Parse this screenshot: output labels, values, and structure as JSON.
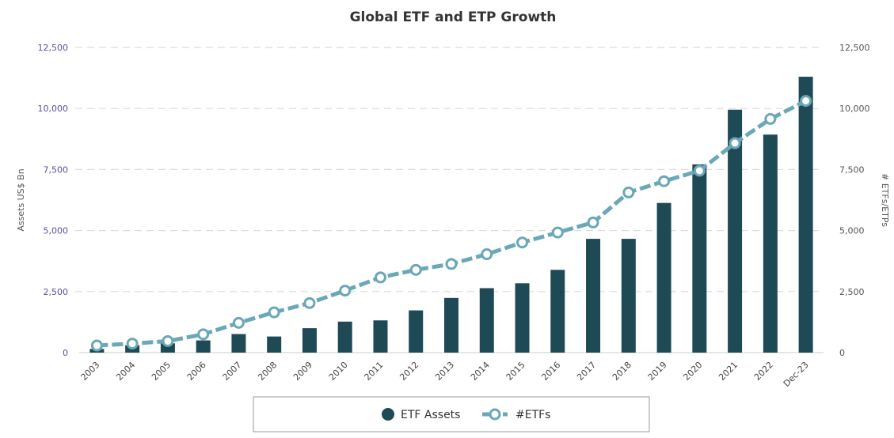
{
  "chart_data": {
    "type": "bar",
    "title": "Global ETF and ETP Growth",
    "categories": [
      "2003",
      "2004",
      "2005",
      "2006",
      "2007",
      "2008",
      "2009",
      "2010",
      "2011",
      "2012",
      "2013",
      "2014",
      "2015",
      "2016",
      "2017",
      "2018",
      "2019",
      "2020",
      "2021",
      "2022",
      "Dec-23"
    ],
    "series": [
      {
        "name": "ETF Assets",
        "kind": "bar",
        "axis": "left",
        "color": "#1e4a56",
        "values": [
          150,
          300,
          380,
          500,
          760,
          660,
          1000,
          1270,
          1320,
          1730,
          2240,
          2640,
          2840,
          3390,
          4660,
          4660,
          6130,
          7710,
          9950,
          8930,
          11300
        ]
      },
      {
        "name": "#ETFs",
        "kind": "line",
        "axis": "right",
        "color": "#6aa8b8",
        "values": [
          290,
          370,
          470,
          750,
          1220,
          1650,
          2030,
          2540,
          3080,
          3390,
          3630,
          4030,
          4510,
          4920,
          5330,
          6560,
          7020,
          7450,
          8580,
          9570,
          10310
        ]
      }
    ],
    "ylabel": "Assets US$ Bn",
    "y2label": "# ETFs/ETPs",
    "ylim": [
      0,
      12500
    ],
    "y2lim": [
      0,
      12500
    ],
    "yticks": [
      "0",
      "2,500",
      "5,000",
      "7,500",
      "10,000",
      "12,500"
    ],
    "y2ticks": [
      "0",
      "2,500",
      "5,000",
      "7,500",
      "10,000",
      "12,500"
    ],
    "ytick_values": [
      0,
      2500,
      5000,
      7500,
      10000,
      12500
    ],
    "grid": true,
    "legend_position": "bottom-center"
  }
}
